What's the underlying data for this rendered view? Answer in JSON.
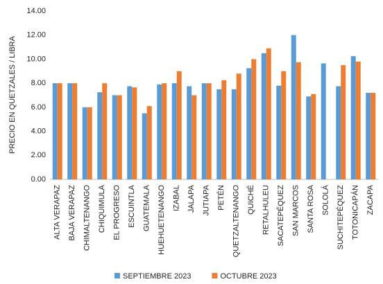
{
  "chart_data": {
    "type": "bar",
    "y_label": "PRECIO EN QUETZALES / LIBRA",
    "categories": [
      "ALTA VERAPAZ",
      "BAJA VERAPAZ",
      "CHIMALTENANGO",
      "CHIQUIMULA",
      "EL PROGRESO",
      "ESCUINTLA",
      "GUATEMALA",
      "HUEHUETENANGO",
      "IZABAL",
      "JALAPA",
      "JUTIAPA",
      "PETÉN",
      "QUETZALTENANGO",
      "QUICHÉ",
      "RETALHULEU",
      "SACATEPÉQUEZ",
      "SAN MARCOS",
      "SANTA ROSA",
      "SOLOLÁ",
      "SUCHITEPÉQUEZ",
      "TOTONICAPÁN",
      "ZACAPA"
    ],
    "series": [
      {
        "name": "SEPTIEMBRE 2023",
        "color": "#5b9bd5",
        "values": [
          8.0,
          8.0,
          6.0,
          7.25,
          7.0,
          7.75,
          5.5,
          7.9,
          8.0,
          7.75,
          8.0,
          7.5,
          7.5,
          9.25,
          10.5,
          7.8,
          12.0,
          6.9,
          9.65,
          7.75,
          10.25,
          7.2
        ]
      },
      {
        "name": "OCTUBRE 2023",
        "color": "#ed7d31",
        "values": [
          8.0,
          8.0,
          6.0,
          8.0,
          7.0,
          7.65,
          6.1,
          8.0,
          9.0,
          7.0,
          8.0,
          8.25,
          8.8,
          10.0,
          10.9,
          9.0,
          9.75,
          7.1,
          null,
          9.5,
          9.8,
          7.2
        ]
      }
    ],
    "ylim": [
      0,
      14
    ],
    "yticks": [
      {
        "value": 0,
        "label": "0.00"
      },
      {
        "value": 2,
        "label": "2.00"
      },
      {
        "value": 4,
        "label": "4.00"
      },
      {
        "value": 6,
        "label": "6.00"
      },
      {
        "value": 8,
        "label": "8.00"
      },
      {
        "value": 10,
        "label": "10.00"
      },
      {
        "value": 12,
        "label": "12.00"
      },
      {
        "value": 14,
        "label": "14.00"
      }
    ],
    "legend": "bottom"
  }
}
